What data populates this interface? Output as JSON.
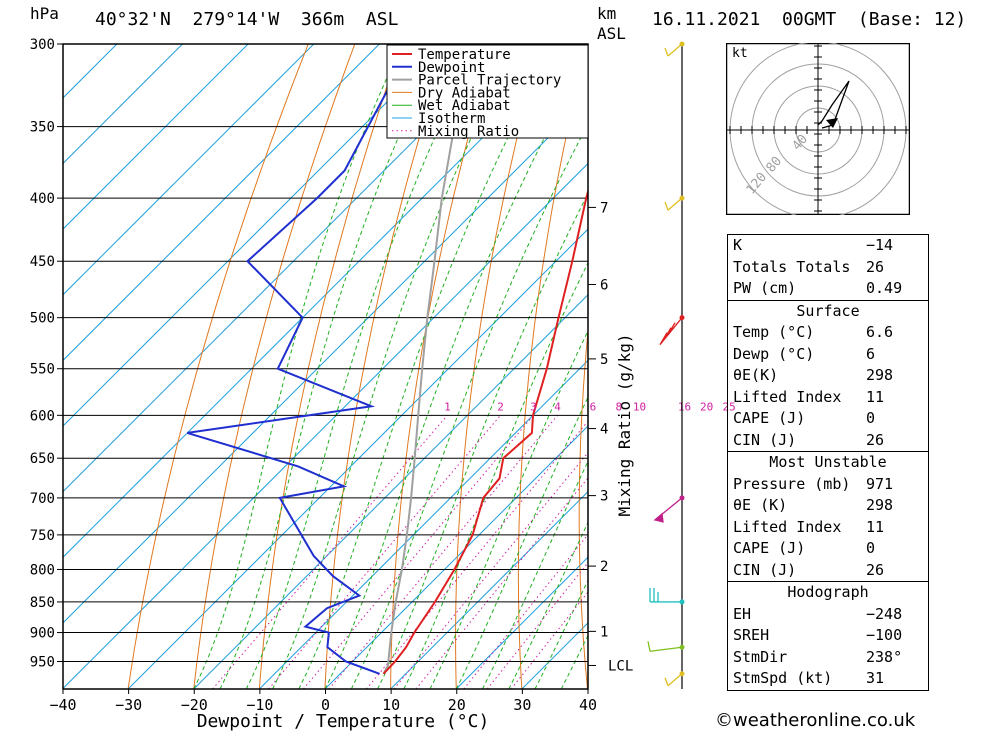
{
  "header": {
    "hpa_label": "hPa",
    "location": "40°32'N  279°14'W  366m  ASL",
    "km_label": "km",
    "asl_label": "ASL",
    "datetime": "16.11.2021  00GMT  (Base: 12)"
  },
  "chart_data": {
    "type": "skew-t log-p",
    "xlabel": "Dewpoint / Temperature (°C)",
    "ylabel_left": "hPa",
    "ylabel_right": "Mixing Ratio (g/kg)",
    "x_ticks": [
      -40,
      -30,
      -20,
      -10,
      0,
      10,
      20,
      30,
      40
    ],
    "x_tick_labels": [
      "−40",
      "−30",
      "−20",
      "−10",
      "0",
      "10",
      "20",
      "30",
      "40"
    ],
    "pressure_levels": [
      300,
      350,
      400,
      450,
      500,
      550,
      600,
      650,
      700,
      750,
      800,
      850,
      900,
      950
    ],
    "p_range": [
      300,
      1000
    ],
    "km_ticks": [
      {
        "label": "7",
        "p": 407
      },
      {
        "label": "6",
        "p": 470
      },
      {
        "label": "5",
        "p": 540
      },
      {
        "label": "4",
        "p": 615
      },
      {
        "label": "3",
        "p": 697
      },
      {
        "label": "2",
        "p": 795
      },
      {
        "label": "1",
        "p": 898
      },
      {
        "label": "LCL",
        "p": 957
      }
    ],
    "mixing_ratio_labels": [
      "1",
      "2",
      "3",
      "4",
      "6",
      "8",
      "10",
      "16",
      "20",
      "25"
    ],
    "legend": [
      "Temperature",
      "Dewpoint",
      "Parcel Trajectory",
      "Dry Adiabat",
      "Wet Adiabat",
      "Isotherm",
      "Mixing Ratio"
    ],
    "series": [
      {
        "name": "Temperature",
        "color": "#e02020",
        "points": [
          [
            972,
            6.6
          ],
          [
            950,
            6.5
          ],
          [
            925,
            6.0
          ],
          [
            900,
            5.0
          ],
          [
            850,
            3.5
          ],
          [
            800,
            1.5
          ],
          [
            750,
            -1.0
          ],
          [
            700,
            -5.0
          ],
          [
            675,
            -5.5
          ],
          [
            650,
            -8.0
          ],
          [
            620,
            -7.5
          ],
          [
            600,
            -10.0
          ],
          [
            550,
            -15.0
          ],
          [
            500,
            -21.0
          ],
          [
            450,
            -27.5
          ],
          [
            400,
            -35.0
          ],
          [
            380,
            -38.0
          ],
          [
            350,
            -43.0
          ],
          [
            300,
            -52.0
          ]
        ]
      },
      {
        "name": "Dewpoint",
        "color": "#2030d0",
        "points": [
          [
            972,
            6.0
          ],
          [
            950,
            -1.0
          ],
          [
            925,
            -6.0
          ],
          [
            900,
            -8.0
          ],
          [
            890,
            -12.5
          ],
          [
            860,
            -12.0
          ],
          [
            840,
            -9.0
          ],
          [
            810,
            -16.0
          ],
          [
            780,
            -22.0
          ],
          [
            700,
            -36.0
          ],
          [
            685,
            -28.0
          ],
          [
            660,
            -38.0
          ],
          [
            620,
            -60.0
          ],
          [
            590,
            -36.0
          ],
          [
            550,
            -56.0
          ],
          [
            500,
            -60.0
          ],
          [
            450,
            -77.0
          ],
          [
            400,
            -76.0
          ],
          [
            380,
            -76.0
          ],
          [
            300,
            -85.0
          ]
        ]
      },
      {
        "name": "Parcel Trajectory",
        "color": "#a0a0a0",
        "points": [
          [
            972,
            6.6
          ],
          [
            957,
            6.0
          ],
          [
            900,
            1.5
          ],
          [
            850,
            -2.5
          ],
          [
            800,
            -6.5
          ],
          [
            750,
            -11.0
          ],
          [
            700,
            -16.0
          ],
          [
            650,
            -21.5
          ],
          [
            600,
            -27.5
          ],
          [
            550,
            -34.0
          ],
          [
            500,
            -41.0
          ],
          [
            450,
            -48.5
          ],
          [
            400,
            -57.0
          ],
          [
            350,
            -66.0
          ],
          [
            300,
            -76.0
          ]
        ]
      }
    ]
  },
  "wind_barbs_hpa": [
    300,
    400,
    500,
    700,
    850,
    925,
    972
  ],
  "hodograph": {
    "unit_label": "kt",
    "ring_labels": [
      "40",
      "80",
      "120"
    ]
  },
  "indices": {
    "top": [
      {
        "label": "K",
        "value": "-14"
      },
      {
        "label": "Totals Totals",
        "value": "26"
      },
      {
        "label": "PW (cm)",
        "value": "0.49"
      }
    ],
    "surface": {
      "title": "Surface",
      "rows": [
        {
          "label": "Temp (°C)",
          "value": "6.6"
        },
        {
          "label": "Dewp (°C)",
          "value": "6"
        },
        {
          "label": "θE(K)",
          "value": "298"
        },
        {
          "label": "Lifted Index",
          "value": "11"
        },
        {
          "label": "CAPE (J)",
          "value": "0"
        },
        {
          "label": "CIN (J)",
          "value": "26"
        }
      ]
    },
    "most_unstable": {
      "title": "Most Unstable",
      "rows": [
        {
          "label": "Pressure (mb)",
          "value": "971"
        },
        {
          "label": "θE (K)",
          "value": "298"
        },
        {
          "label": "Lifted Index",
          "value": "11"
        },
        {
          "label": "CAPE (J)",
          "value": "0"
        },
        {
          "label": "CIN (J)",
          "value": "26"
        }
      ]
    },
    "hodograph": {
      "title": "Hodograph",
      "rows": [
        {
          "label": "EH",
          "value": "-248"
        },
        {
          "label": "SREH",
          "value": "-100"
        },
        {
          "label": "StmDir",
          "value": "238°"
        },
        {
          "label": "StmSpd (kt)",
          "value": "31"
        }
      ]
    }
  },
  "credit": "©weatheronline.co.uk",
  "colors": {
    "temperature": "#e02020",
    "dewpoint": "#2030d0",
    "parcel": "#a0a0a0",
    "dry_adiabat": "#e07820",
    "wet_adiabat": "#20b020",
    "isotherm": "#20a0e0",
    "mixing_ratio": "#d020a0"
  }
}
